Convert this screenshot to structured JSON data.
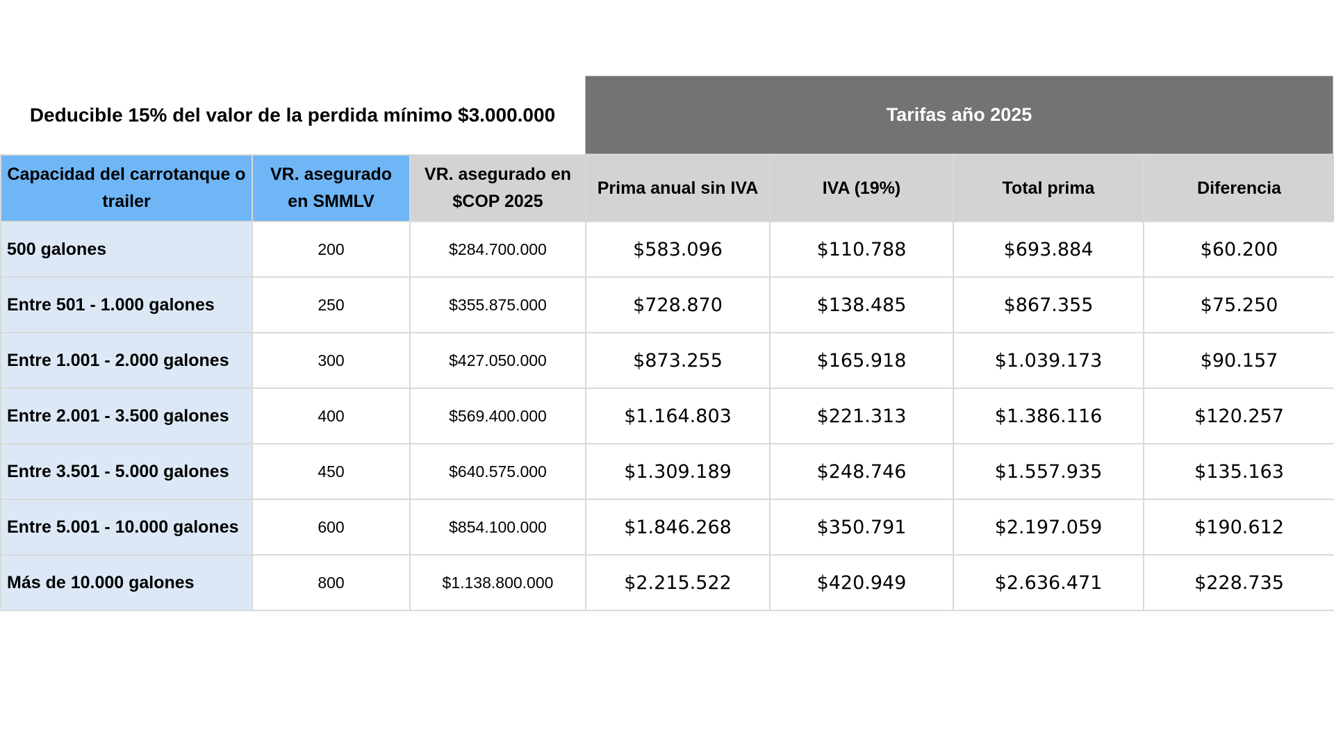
{
  "deductible_text": "Deducible 15% del valor de la perdida mínimo $3.000.000",
  "rates_banner": "Tarifas año 2025",
  "headers": {
    "capacity": "Capacidad del carrotanque o trailer",
    "smmlv": "VR. asegurado en SMMLV",
    "cop": "VR. asegurado en $COP 2025",
    "premium": "Prima anual sin IVA",
    "iva": "IVA (19%)",
    "total": "Total prima",
    "difference": "Diferencia"
  },
  "rows": [
    {
      "capacity": "500 galones",
      "smmlv": "200",
      "cop": "$284.700.000",
      "premium": "$583.096",
      "iva": "$110.788",
      "total": "$693.884",
      "difference": "$60.200"
    },
    {
      "capacity": "Entre 501 - 1.000 galones",
      "smmlv": "250",
      "cop": "$355.875.000",
      "premium": "$728.870",
      "iva": "$138.485",
      "total": "$867.355",
      "difference": "$75.250"
    },
    {
      "capacity": "Entre 1.001 - 2.000 galones",
      "smmlv": "300",
      "cop": "$427.050.000",
      "premium": "$873.255",
      "iva": "$165.918",
      "total": "$1.039.173",
      "difference": "$90.157"
    },
    {
      "capacity": "Entre 2.001 - 3.500 galones",
      "smmlv": "400",
      "cop": "$569.400.000",
      "premium": "$1.164.803",
      "iva": "$221.313",
      "total": "$1.386.116",
      "difference": "$120.257"
    },
    {
      "capacity": "Entre 3.501 - 5.000 galones",
      "smmlv": "450",
      "cop": "$640.575.000",
      "premium": "$1.309.189",
      "iva": "$248.746",
      "total": "$1.557.935",
      "difference": "$135.163"
    },
    {
      "capacity": "Entre 5.001 - 10.000 galones",
      "smmlv": "600",
      "cop": "$854.100.000",
      "premium": "$1.846.268",
      "iva": "$350.791",
      "total": "$2.197.059",
      "difference": "$190.612"
    },
    {
      "capacity": "Más de 10.000 galones",
      "smmlv": "800",
      "cop": "$1.138.800.000",
      "premium": "$2.215.522",
      "iva": "$420.949",
      "total": "$2.636.471",
      "difference": "$228.735"
    }
  ],
  "colors": {
    "header_blue": "#6fb6f6",
    "header_grey": "#d3d3d3",
    "banner_grey": "#737373",
    "capacity_cell": "#dce8f5",
    "grid": "#d9d9d9"
  }
}
